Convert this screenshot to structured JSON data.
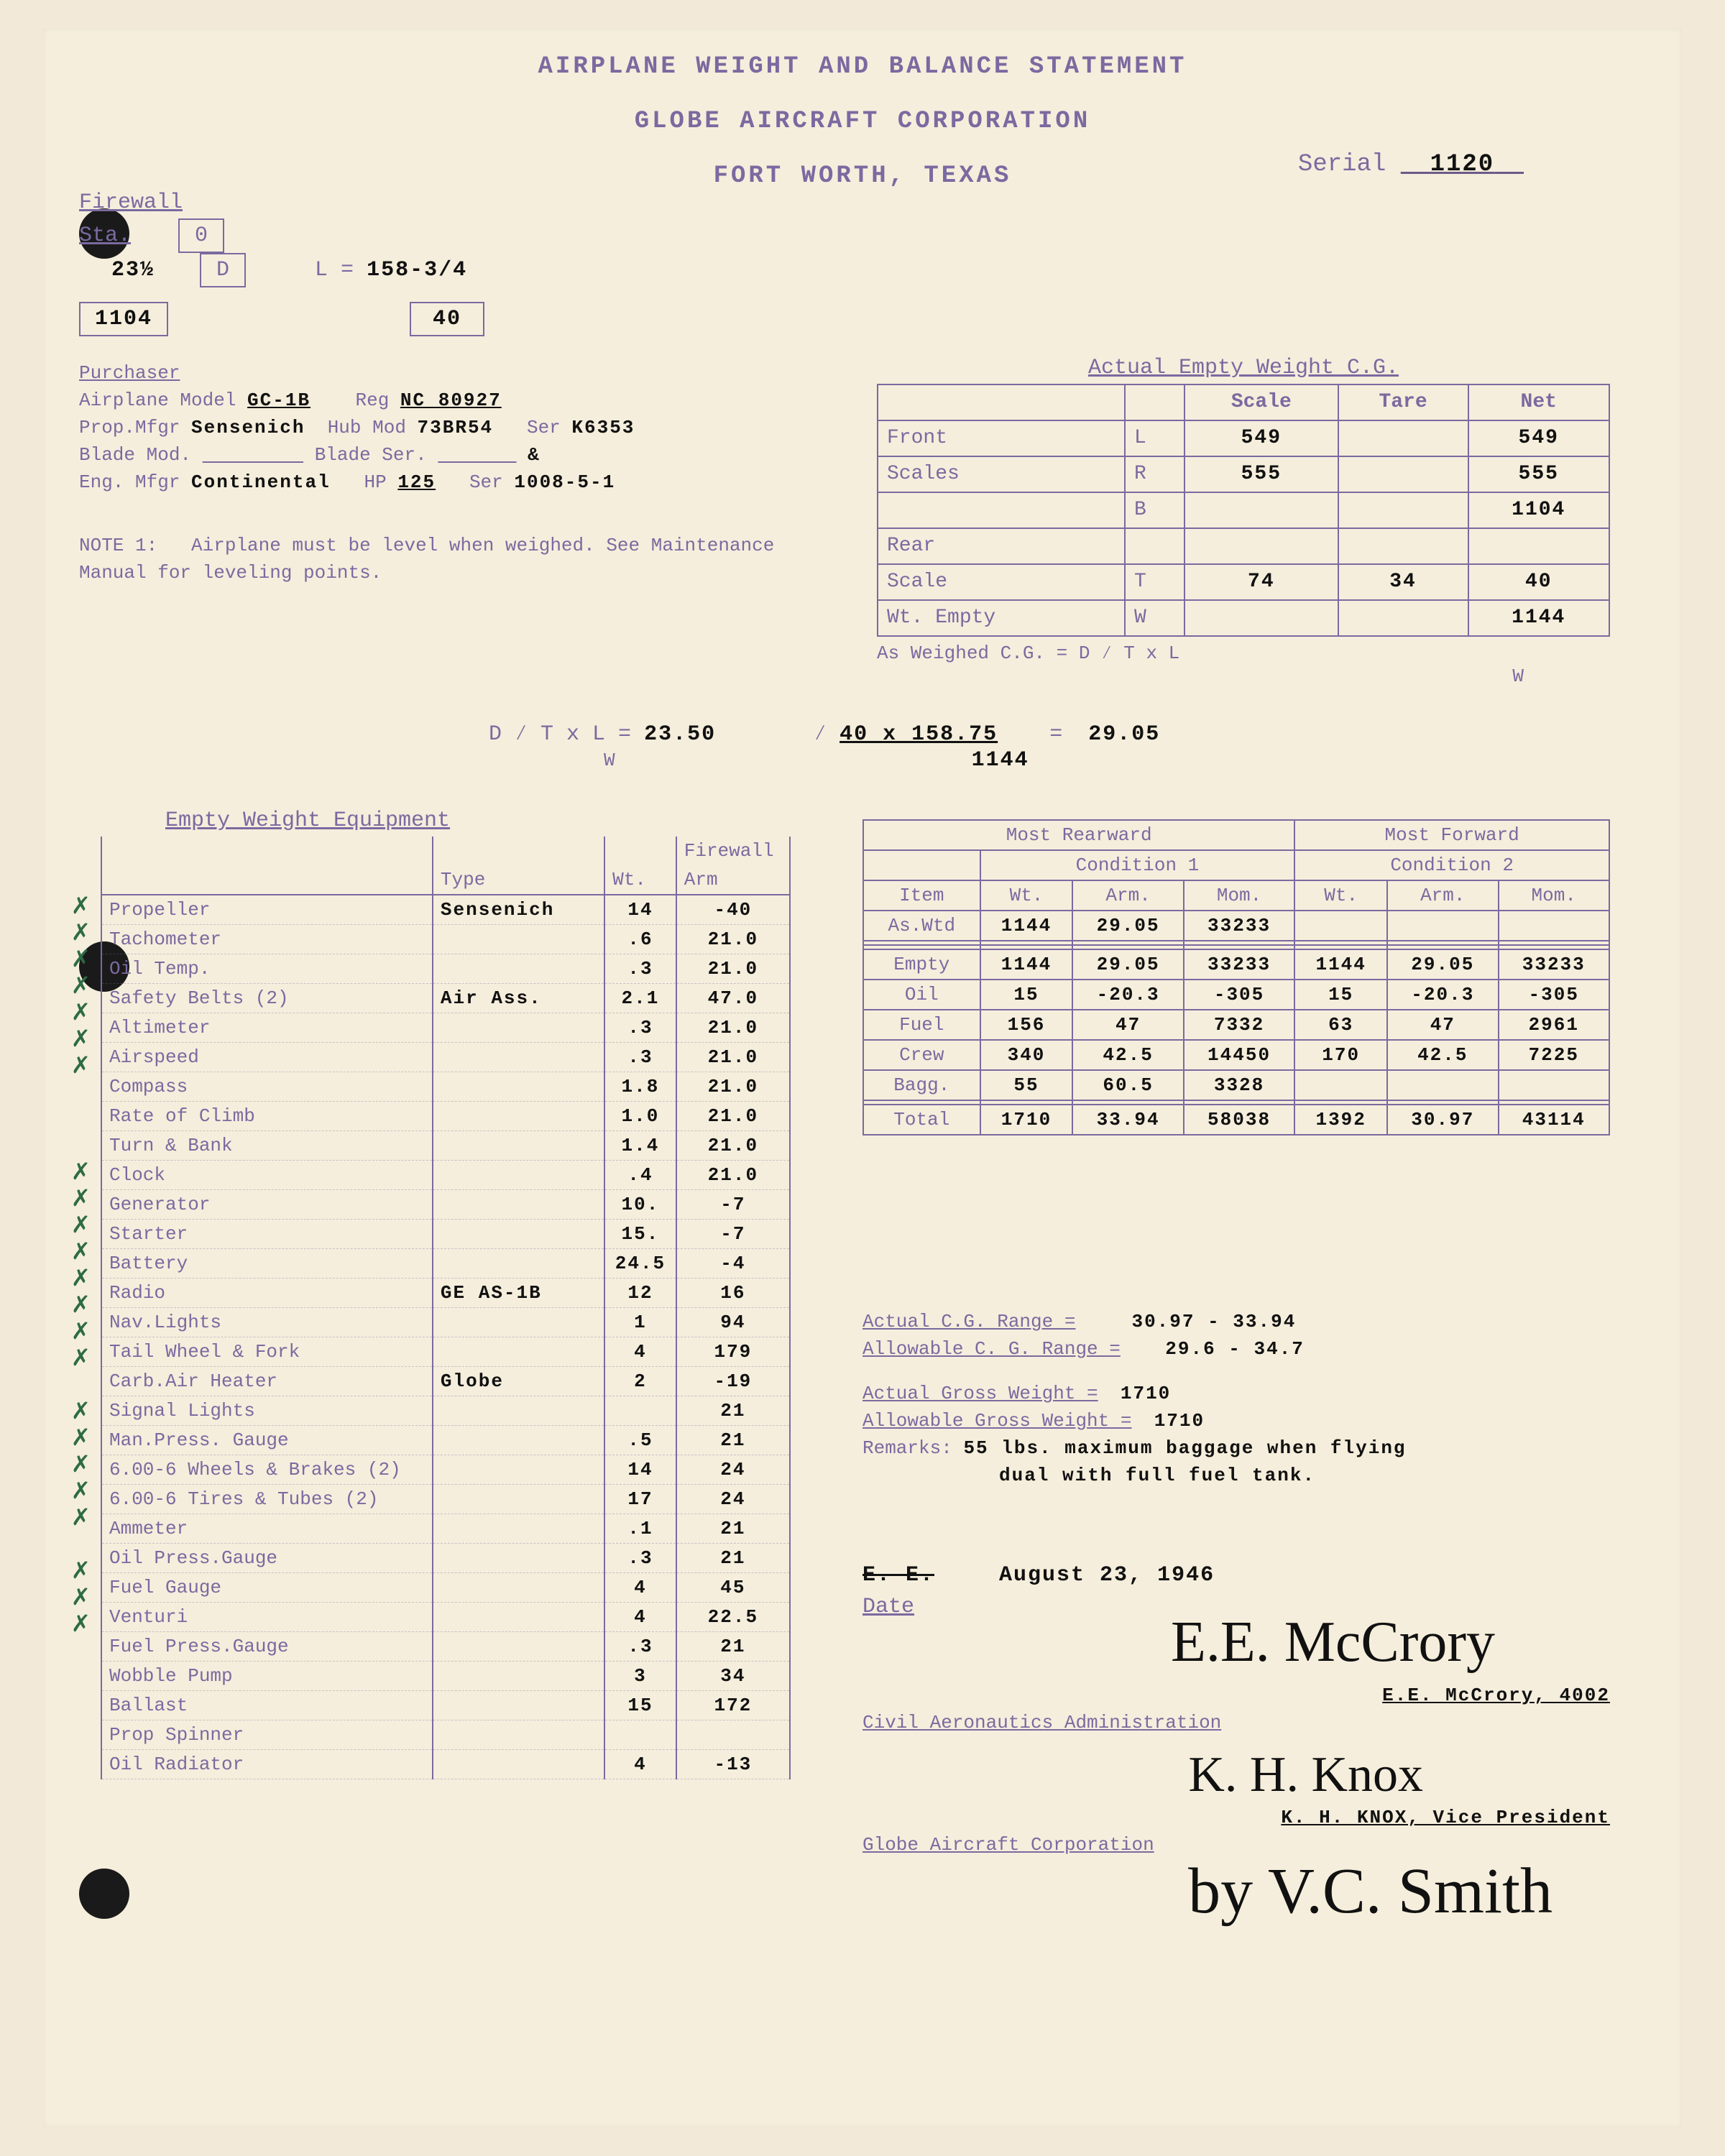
{
  "header": {
    "line1": "AIRPLANE WEIGHT AND BALANCE STATEMENT",
    "line2": "GLOBE AIRCRAFT CORPORATION",
    "line3": "FORT WORTH,  TEXAS"
  },
  "serial": {
    "label": "Serial",
    "value": "1120"
  },
  "firewall_block": {
    "label": "Firewall",
    "sta_label": "Sta.",
    "d_label": "D",
    "l_label": "L =",
    "sta": "23½",
    "l": "158-3/4",
    "w": "1104",
    "t": "40"
  },
  "aircraft": {
    "purchaser_label": "Purchaser",
    "model_label": "Airplane Model",
    "model": "GC-1B",
    "reg_label": "Reg",
    "reg": "NC 80927",
    "prop_mfgr_label": "Prop.Mfgr",
    "prop_mfgr": "Sensenich",
    "hub_mod_label": "Hub Mod",
    "hub_mod": "73BR54",
    "ser_label": "Ser",
    "prop_ser": "K6353",
    "blade_mod_label": "Blade Mod.",
    "blade_ser_label": "Blade Ser.",
    "blade_and": "&",
    "eng_mfgr_label": "Eng. Mfgr",
    "eng_mfgr": "Continental",
    "hp_label": "HP",
    "hp": "125",
    "eng_ser": "1008-5-1"
  },
  "note1": {
    "label": "NOTE 1:",
    "text": "Airplane must be level when weighed. See Maintenance Manual for leveling points."
  },
  "weight_table": {
    "title": "Actual Empty Weight C.G.",
    "cols": [
      "",
      "",
      "Scale",
      "Tare",
      "Net"
    ],
    "rows": [
      [
        "Front",
        "L",
        "549",
        "",
        "549"
      ],
      [
        "Scales",
        "R",
        "555",
        "",
        "555"
      ],
      [
        "",
        "B",
        "",
        "",
        "1104"
      ],
      [
        "Rear",
        "",
        "",
        "",
        ""
      ],
      [
        "Scale",
        "T",
        "74",
        "34",
        "40"
      ],
      [
        "Wt. Empty",
        "W",
        "",
        "",
        "1144"
      ]
    ],
    "as_weighed": "As Weighed C.G.    = D ∕  T x L",
    "as_weighed_denom": "W"
  },
  "cg_calc": {
    "lhs": "D ∕  T x L",
    "lhs_denom": "W",
    "lhs_val": "23.50",
    "rhs": "40 x 158.75",
    "rhs_denom": "1144",
    "result": "29.05"
  },
  "equipment": {
    "title": "Empty Weight Equipment",
    "headers": [
      "",
      "Type",
      "Wt.",
      "Firewall Arm"
    ],
    "rows": [
      {
        "chk": true,
        "label": "Propeller",
        "type": "Sensenich",
        "wt": "14",
        "arm": "-40"
      },
      {
        "chk": true,
        "label": "Tachometer",
        "type": "",
        "wt": ".6",
        "arm": "21.0"
      },
      {
        "chk": true,
        "label": "Oil Temp.",
        "type": "",
        "wt": ".3",
        "arm": "21.0"
      },
      {
        "chk": true,
        "label": "Safety Belts (2)",
        "type": "Air Ass.",
        "wt": "2.1",
        "arm": "47.0"
      },
      {
        "chk": true,
        "label": "Altimeter",
        "type": "",
        "wt": ".3",
        "arm": "21.0"
      },
      {
        "chk": true,
        "label": "Airspeed",
        "type": "",
        "wt": ".3",
        "arm": "21.0"
      },
      {
        "chk": true,
        "label": "Compass",
        "type": "",
        "wt": "1.8",
        "arm": "21.0"
      },
      {
        "chk": false,
        "label": "Rate of Climb",
        "type": "",
        "wt": "1.0",
        "arm": "21.0"
      },
      {
        "chk": false,
        "label": "Turn & Bank",
        "type": "",
        "wt": "1.4",
        "arm": "21.0"
      },
      {
        "chk": false,
        "label": "Clock",
        "type": "",
        "wt": ".4",
        "arm": "21.0"
      },
      {
        "chk": true,
        "label": "Generator",
        "type": "",
        "wt": "10.",
        "arm": "-7"
      },
      {
        "chk": true,
        "label": "Starter",
        "type": "",
        "wt": "15.",
        "arm": "-7"
      },
      {
        "chk": true,
        "label": "Battery",
        "type": "",
        "wt": "24.5",
        "arm": "-4"
      },
      {
        "chk": true,
        "label": "Radio",
        "type": "GE AS-1B",
        "wt": "12",
        "arm": "16"
      },
      {
        "chk": true,
        "label": "Nav.Lights",
        "type": "",
        "wt": "1",
        "arm": "94"
      },
      {
        "chk": true,
        "label": "Tail Wheel & Fork",
        "type": "",
        "wt": "4",
        "arm": "179"
      },
      {
        "chk": true,
        "label": "Carb.Air Heater",
        "type": "Globe",
        "wt": "2",
        "arm": "-19"
      },
      {
        "chk": true,
        "label": "Signal Lights",
        "type": "",
        "wt": "",
        "arm": "21"
      },
      {
        "chk": false,
        "label": "Man.Press. Gauge",
        "type": "",
        "wt": ".5",
        "arm": "21"
      },
      {
        "chk": true,
        "label": "6.00-6 Wheels & Brakes (2)",
        "type": "",
        "wt": "14",
        "arm": "24"
      },
      {
        "chk": true,
        "label": "6.00-6 Tires & Tubes (2)",
        "type": "",
        "wt": "17",
        "arm": "24"
      },
      {
        "chk": true,
        "label": "Ammeter",
        "type": "",
        "wt": ".1",
        "arm": "21"
      },
      {
        "chk": true,
        "label": "Oil Press.Gauge",
        "type": "",
        "wt": ".3",
        "arm": "21"
      },
      {
        "chk": true,
        "label": "Fuel Gauge",
        "type": "",
        "wt": "4",
        "arm": "45"
      },
      {
        "chk": false,
        "label": "Venturi",
        "type": "",
        "wt": "4",
        "arm": "22.5"
      },
      {
        "chk": true,
        "label": "Fuel Press.Gauge",
        "type": "",
        "wt": ".3",
        "arm": "21"
      },
      {
        "chk": true,
        "label": "Wobble Pump",
        "type": "",
        "wt": "3",
        "arm": "34"
      },
      {
        "chk": true,
        "label": "Ballast",
        "type": "",
        "wt": "15",
        "arm": "172"
      },
      {
        "chk": false,
        "label": "Prop Spinner",
        "type": "",
        "wt": "",
        "arm": ""
      },
      {
        "chk": false,
        "label": "Oil Radiator",
        "type": "",
        "wt": "4",
        "arm": "-13"
      }
    ]
  },
  "loading": {
    "rear_title": "Most Rearward",
    "fwd_title": "Most Forward",
    "cond1": "Condition 1",
    "cond2": "Condition 2",
    "sub": [
      "Item",
      "Wt.",
      "Arm.",
      "Mom.",
      "Wt.",
      "Arm.",
      "Mom."
    ],
    "rows": [
      [
        "As.Wtd",
        "1144",
        "29.05",
        "33233",
        "",
        "",
        ""
      ],
      [
        "",
        "",
        "",
        "",
        "",
        "",
        ""
      ],
      [
        "",
        "",
        "",
        "",
        "",
        "",
        ""
      ],
      [
        "Empty",
        "1144",
        "29.05",
        "33233",
        "1144",
        "29.05",
        "33233"
      ],
      [
        "Oil",
        "15",
        "-20.3",
        "-305",
        "15",
        "-20.3",
        "-305"
      ],
      [
        "Fuel",
        "156",
        "47",
        "7332",
        "63",
        "47",
        "2961"
      ],
      [
        "Crew",
        "340",
        "42.5",
        "14450",
        "170",
        "42.5",
        "7225"
      ],
      [
        "Bagg.",
        "55",
        "60.5",
        "3328",
        "",
        "",
        ""
      ],
      [
        "",
        "",
        "",
        "",
        "",
        "",
        ""
      ],
      [
        "Total",
        "1710",
        "33.94",
        "58038",
        "1392",
        "30.97",
        "43114"
      ]
    ]
  },
  "ranges": {
    "actual_cg_label": "Actual C.G. Range   =",
    "actual_cg": "30.97  -  33.94",
    "allow_cg_label": "Allowable C. G. Range =",
    "allow_cg": "29.6   -  34.7",
    "actual_gw_label": "Actual Gross Weight    =",
    "actual_gw": "1710",
    "allow_gw_label": "Allowable Gross Weight =",
    "allow_gw": "1710"
  },
  "remarks": {
    "label": "Remarks:",
    "text1": "55 lbs. maximum baggage when flying",
    "text2": "dual with full fuel tank."
  },
  "date": {
    "initials": "E. E.",
    "label": "Date",
    "value": "August 23, 1946"
  },
  "signers": {
    "s1_name": "E.E. McCrory, 4002",
    "s1_org": "Civil Aeronautics Administration",
    "s2_name": "K. H. KNOX, Vice President",
    "s2_org": "Globe Aircraft Corporation"
  }
}
